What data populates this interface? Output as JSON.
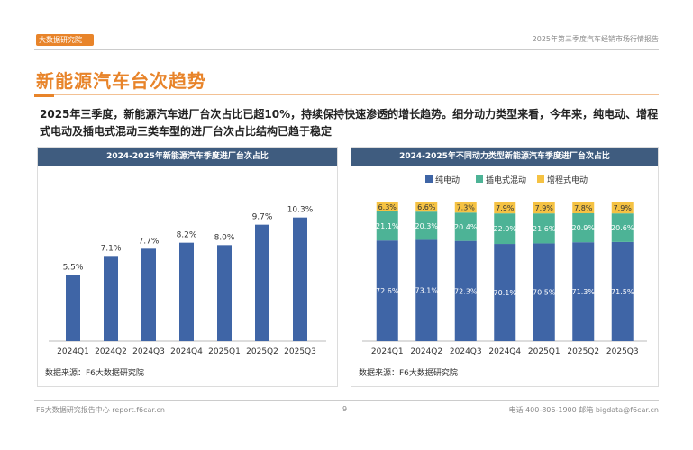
{
  "header": {
    "logo_text": "大数据研究院",
    "report_title": "2025年第三季度汽车经销市场行情报告"
  },
  "page_title": "新能源汽车台次趋势",
  "summary": "2025年三季度，新能源汽车进厂台次占比已超10%，持续保持快速渗透的增长趋势。细分动力类型来看，今年来，纯电动、增程式电动及插电式混动三类车型的进厂台次占比结构已趋于稳定",
  "left_panel": {
    "title": "2024-2025年新能源汽车季度进厂台次占比",
    "source": "数据来源：F6大数据研究院"
  },
  "right_panel": {
    "title": "2024-2025年不同动力类型新能源汽车季度进厂台次占比",
    "source": "数据来源：F6大数据研究院"
  },
  "footer": {
    "left": "F6大数据研究报告中心 report.f6car.cn",
    "page": "9",
    "right": "电话 400-806-1900  邮箱 bigdata@f6car.cn"
  },
  "colors": {
    "orange": "#e8842a",
    "bar_blue": "#3f65a6",
    "header_blue": "#3f5c7f",
    "green": "#4db396",
    "yellow": "#f5c243"
  },
  "chart_data": [
    {
      "type": "bar",
      "title": "2024-2025年新能源汽车季度进厂台次占比",
      "categories": [
        "2024Q1",
        "2024Q2",
        "2024Q3",
        "2024Q4",
        "2025Q1",
        "2025Q2",
        "2025Q3"
      ],
      "values": [
        5.5,
        7.1,
        7.7,
        8.2,
        8.0,
        9.7,
        10.3
      ],
      "labels": [
        "5.5%",
        "7.1%",
        "7.7%",
        "8.2%",
        "8.0%",
        "9.7%",
        "10.3%"
      ],
      "ylim": [
        0,
        12
      ],
      "grid": false
    },
    {
      "type": "bar",
      "stacked": true,
      "title": "2024-2025年不同动力类型新能源汽车季度进厂台次占比",
      "categories": [
        "2024Q1",
        "2024Q2",
        "2024Q3",
        "2024Q4",
        "2025Q1",
        "2025Q2",
        "2025Q3"
      ],
      "legend_position": "top",
      "series": [
        {
          "name": "纯电动",
          "color": "#3f65a6",
          "values": [
            72.6,
            73.1,
            72.3,
            70.1,
            70.5,
            71.3,
            71.5
          ],
          "labels": [
            "72.6%",
            "73.1%",
            "72.3%",
            "70.1%",
            "70.5%",
            "71.3%",
            "71.5%"
          ]
        },
        {
          "name": "插电式混动",
          "color": "#4db396",
          "values": [
            21.1,
            20.3,
            20.4,
            22.0,
            21.6,
            20.9,
            20.6
          ],
          "labels": [
            "21.1%",
            "20.3%",
            "20.4%",
            "22.0%",
            "21.6%",
            "20.9%",
            "20.6%"
          ]
        },
        {
          "name": "增程式电动",
          "color": "#f5c243",
          "values": [
            6.3,
            6.6,
            7.3,
            7.9,
            7.9,
            7.8,
            7.9
          ],
          "labels": [
            "6.3%",
            "6.6%",
            "7.3%",
            "7.9%",
            "7.9%",
            "7.8%",
            "7.9%"
          ]
        }
      ],
      "ylim": [
        0,
        100
      ],
      "grid": false
    }
  ]
}
